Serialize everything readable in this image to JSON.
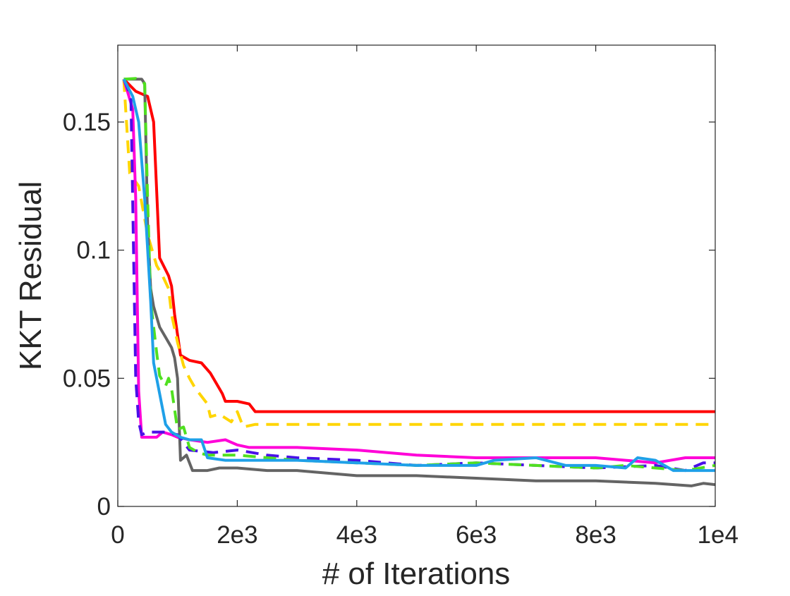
{
  "chart_data": {
    "type": "line",
    "title": "",
    "xlabel": "# of Iterations",
    "ylabel": "KKT Residual",
    "xlim": [
      0,
      10000
    ],
    "ylim": [
      0,
      0.18
    ],
    "xticks": [
      0,
      2000,
      4000,
      6000,
      8000,
      10000
    ],
    "xtick_labels": [
      "0",
      "2e3",
      "4e3",
      "6e3",
      "8e3",
      "1e4"
    ],
    "yticks": [
      0,
      0.05,
      0.1,
      0.15
    ],
    "ytick_labels": [
      "0",
      "0.05",
      "0.1",
      "0.15"
    ],
    "grid": false,
    "legend": "none",
    "series": [
      {
        "color": "#FF0000",
        "dash": "solid",
        "x": [
          100,
          300,
          500,
          600,
          700,
          850,
          900,
          950,
          1050,
          1200,
          1400,
          1550,
          1700,
          1750,
          1800,
          2000,
          2200,
          2300,
          4000,
          6000,
          8000,
          10000
        ],
        "y": [
          0.1667,
          0.162,
          0.16,
          0.15,
          0.097,
          0.09,
          0.086,
          0.075,
          0.059,
          0.057,
          0.056,
          0.052,
          0.046,
          0.044,
          0.041,
          0.041,
          0.04,
          0.037,
          0.037,
          0.037,
          0.037,
          0.037
        ]
      },
      {
        "color": "#FFD500",
        "dash": "dashed",
        "x": [
          100,
          200,
          350,
          500,
          650,
          750,
          850,
          900,
          1000,
          1100,
          1200,
          1300,
          1500,
          1550,
          1700,
          1900,
          2000,
          2100,
          2300,
          3000,
          5000,
          8000,
          10000
        ],
        "y": [
          0.1667,
          0.13,
          0.125,
          0.106,
          0.094,
          0.09,
          0.085,
          0.075,
          0.064,
          0.055,
          0.05,
          0.046,
          0.04,
          0.035,
          0.036,
          0.033,
          0.037,
          0.031,
          0.032,
          0.032,
          0.032,
          0.032,
          0.032
        ]
      },
      {
        "color": "#646464",
        "dash": "solid",
        "x": [
          100,
          400,
          450,
          500,
          550,
          600,
          700,
          800,
          850,
          900,
          950,
          1000,
          1050,
          1150,
          1250,
          1500,
          1700,
          2000,
          2500,
          3000,
          3500,
          4000,
          5000,
          6000,
          7000,
          8000,
          9000,
          9600,
          9800,
          10000
        ],
        "y": [
          0.1667,
          0.1667,
          0.165,
          0.11,
          0.085,
          0.078,
          0.07,
          0.066,
          0.064,
          0.062,
          0.058,
          0.05,
          0.018,
          0.02,
          0.014,
          0.014,
          0.015,
          0.015,
          0.014,
          0.014,
          0.013,
          0.012,
          0.012,
          0.011,
          0.01,
          0.01,
          0.009,
          0.008,
          0.009,
          0.0085
        ]
      },
      {
        "color": "#FF00D8",
        "dash": "solid",
        "x": [
          100,
          250,
          300,
          350,
          400,
          650,
          750,
          900,
          1000,
          1200,
          1500,
          1800,
          2000,
          2200,
          2500,
          3000,
          4000,
          5000,
          6000,
          7000,
          8000,
          9000,
          9500,
          10000
        ],
        "y": [
          0.1667,
          0.155,
          0.12,
          0.045,
          0.027,
          0.027,
          0.029,
          0.028,
          0.027,
          0.026,
          0.025,
          0.026,
          0.024,
          0.023,
          0.023,
          0.023,
          0.022,
          0.02,
          0.019,
          0.019,
          0.019,
          0.017,
          0.019,
          0.019
        ]
      },
      {
        "color": "#4A10E8",
        "dash": "dashed",
        "x": [
          100,
          220,
          300,
          350,
          400,
          500,
          800,
          1000,
          1200,
          1600,
          2000,
          2500,
          3000,
          4000,
          5000,
          6000,
          7000,
          8000,
          9000,
          9500,
          9800,
          10000
        ],
        "y": [
          0.1667,
          0.16,
          0.05,
          0.033,
          0.028,
          0.029,
          0.029,
          0.028,
          0.022,
          0.021,
          0.022,
          0.02,
          0.019,
          0.018,
          0.016,
          0.017,
          0.016,
          0.015,
          0.016,
          0.014,
          0.017,
          0.017
        ]
      },
      {
        "color": "#50E020",
        "dash": "dashed",
        "x": [
          100,
          300,
          450,
          500,
          550,
          650,
          700,
          800,
          850,
          900,
          1000,
          1100,
          1200,
          1350,
          1500,
          2000,
          3000,
          4000,
          5000,
          6000,
          7000,
          8000,
          8500,
          9000,
          9500,
          10000
        ],
        "y": [
          0.1667,
          0.167,
          0.165,
          0.12,
          0.08,
          0.06,
          0.051,
          0.047,
          0.05,
          0.046,
          0.03,
          0.031,
          0.023,
          0.021,
          0.02,
          0.02,
          0.018,
          0.017,
          0.016,
          0.017,
          0.016,
          0.015,
          0.016,
          0.015,
          0.014,
          0.016
        ]
      },
      {
        "color": "#1FA0E8",
        "dash": "solid",
        "x": [
          100,
          250,
          350,
          450,
          550,
          600,
          800,
          900,
          1050,
          1200,
          1400,
          1500,
          1800,
          2500,
          3000,
          4000,
          5000,
          6000,
          6300,
          7000,
          7500,
          8000,
          8500,
          8700,
          9000,
          9300,
          10000
        ],
        "y": [
          0.1667,
          0.16,
          0.15,
          0.12,
          0.08,
          0.056,
          0.032,
          0.029,
          0.027,
          0.026,
          0.026,
          0.019,
          0.018,
          0.018,
          0.018,
          0.017,
          0.016,
          0.016,
          0.018,
          0.019,
          0.016,
          0.016,
          0.015,
          0.019,
          0.018,
          0.014,
          0.014
        ]
      }
    ]
  }
}
